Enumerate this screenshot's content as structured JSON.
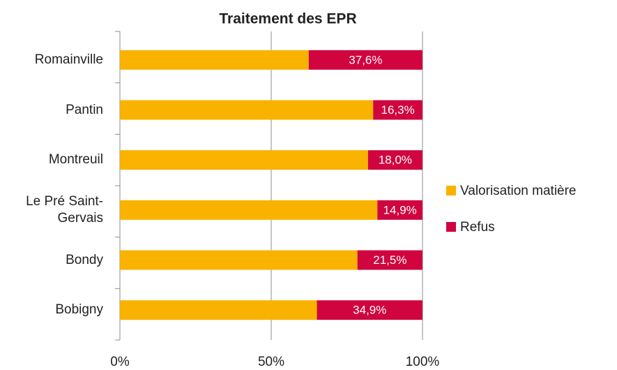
{
  "chart_data": {
    "type": "stacked_barh",
    "title": "Traitement des EPR",
    "categories": [
      "Romainville",
      "Pantin",
      "Montreuil",
      "Le Pré Saint-Gervais",
      "Bondy",
      "Bobigny"
    ],
    "series": [
      {
        "name": "Valorisation matière",
        "color": "#f9b200",
        "values": [
          62.4,
          83.7,
          82.0,
          85.1,
          78.5,
          65.1
        ]
      },
      {
        "name": "Refus",
        "color": "#d0053f",
        "values": [
          37.6,
          16.3,
          18.0,
          14.9,
          21.5,
          34.9
        ],
        "value_labels": [
          "37,6%",
          "16,3%",
          "18,0%",
          "14,9%",
          "21,5%",
          "34,9%"
        ]
      }
    ],
    "xlim": [
      0,
      100
    ],
    "xticks": [
      {
        "value": 0,
        "label": "0%"
      },
      {
        "value": 50,
        "label": "50%"
      },
      {
        "value": 100,
        "label": "100%"
      }
    ],
    "grid": true,
    "legend": "right"
  }
}
